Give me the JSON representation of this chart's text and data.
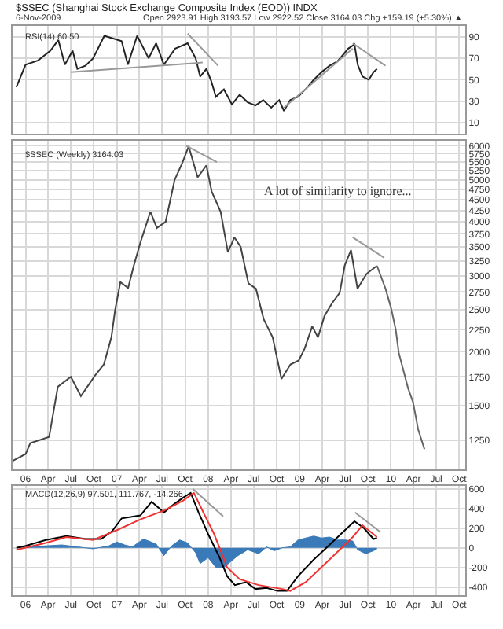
{
  "chart_data": [
    {
      "type": "line",
      "title": "$SSEC (Shanghai Stock Exchange Composite Index (EOD)) INDX",
      "subtitle": "6-Nov-2009",
      "annotations": [
        "Open 2923.91 High 3193.57 Low 2922.52 Close 3164.03 Chg +159.19 (+5.30%) ▲",
        "RSI(14) 60.50"
      ],
      "xlim": [
        "2005-11-10",
        "2010-10-25"
      ],
      "ylim": [
        0,
        100
      ],
      "yticks": [
        10,
        30,
        50,
        70,
        90
      ],
      "xticks": [
        {
          "value": "2006-01-01",
          "label": null
        },
        {
          "value": "2006-04-01",
          "label": null
        },
        {
          "value": "2006-07-01",
          "label": null
        },
        {
          "value": "2006-10-01",
          "label": null
        },
        {
          "value": "2007-01-01",
          "label": null
        },
        {
          "value": "2007-04-01",
          "label": null
        },
        {
          "value": "2007-07-01",
          "label": null
        },
        {
          "value": "2007-10-01",
          "label": null
        },
        {
          "value": "2008-01-01",
          "label": null
        },
        {
          "value": "2008-04-01",
          "label": null
        },
        {
          "value": "2008-07-01",
          "label": null
        },
        {
          "value": "2008-10-01",
          "label": null
        },
        {
          "value": "2009-01-01",
          "label": null
        },
        {
          "value": "2009-04-01",
          "label": null
        },
        {
          "value": "2009-07-01",
          "label": null
        },
        {
          "value": "2009-10-01",
          "label": null
        },
        {
          "value": "2010-01-01",
          "label": null
        },
        {
          "value": "2010-04-01",
          "label": null
        },
        {
          "value": "2010-07-01",
          "label": null
        },
        {
          "value": "2010-10-01",
          "label": null
        }
      ],
      "tick_labels": "y",
      "grid": true,
      "series": [
        {
          "color": "#222222",
          "x": [
            "2005-11-25",
            "2006-01-01",
            "2006-02-20",
            "2006-04-10",
            "2006-05-12",
            "2006-06-07",
            "2006-07-08",
            "2006-07-27",
            "2006-08-28",
            "2006-09-28",
            "2006-11-12",
            "2007-01-20",
            "2007-02-14",
            "2007-03-23",
            "2007-05-08",
            "2007-06-07",
            "2007-07-08",
            "2007-08-22",
            "2007-10-11",
            "2007-11-12",
            "2007-11-30",
            "2007-12-25",
            "2008-01-13",
            "2008-02-01",
            "2008-03-04",
            "2008-04-05",
            "2008-05-06",
            "2008-06-07",
            "2008-07-08",
            "2008-08-08",
            "2008-09-09",
            "2008-10-11",
            "2008-10-30",
            "2008-11-24",
            "2008-12-25",
            "2009-02-01",
            "2009-02-26",
            "2009-03-29",
            "2009-04-30",
            "2009-06-01",
            "2009-07-14",
            "2009-08-08",
            "2009-08-21",
            "2009-09-09",
            "2009-10-04",
            "2009-10-23",
            "2009-11-06"
          ],
          "values": [
            43,
            64,
            68,
            77,
            87,
            64,
            77,
            60,
            63,
            70,
            91,
            86,
            64,
            91,
            70,
            84,
            64,
            79,
            84,
            70,
            53,
            60,
            49,
            34,
            41,
            27,
            36,
            29,
            26,
            31,
            24,
            31,
            21,
            31,
            34,
            43,
            50,
            57,
            63,
            67,
            79,
            83,
            64,
            53,
            50,
            57,
            60
          ]
        },
        {
          "color": "#999999",
          "x": [
            "2006-07-01",
            "2007-12-10"
          ],
          "values": [
            57,
            66
          ]
        },
        {
          "color": "#999999",
          "x": [
            "2007-10-11",
            "2008-02-10"
          ],
          "values": [
            93,
            63
          ]
        },
        {
          "color": "#999999",
          "x": [
            "2008-10-30",
            "2009-08-01"
          ],
          "values": [
            24,
            79
          ]
        },
        {
          "color": "#999999",
          "x": [
            "2009-08-01",
            "2009-12-10"
          ],
          "values": [
            84,
            63
          ]
        }
      ]
    },
    {
      "type": "line",
      "annotations": [
        "$SSEC (Weekly) 3164.03",
        "A lot of similarity to ignore..."
      ],
      "xlim": [
        "2005-11-10",
        "2010-10-25"
      ],
      "ylim": [
        1070,
        6150
      ],
      "log": "y",
      "yticks": [
        1250,
        1500,
        1750,
        2000,
        2250,
        2500,
        2750,
        3000,
        3250,
        3500,
        3750,
        4000,
        4250,
        4500,
        4750,
        5000,
        5250,
        5500,
        5750,
        6000
      ],
      "xticks": [
        {
          "value": "2006-01-01",
          "label": "06"
        },
        {
          "value": "2006-04-01",
          "label": "Apr"
        },
        {
          "value": "2006-07-01",
          "label": "Jul"
        },
        {
          "value": "2006-10-01",
          "label": "Oct"
        },
        {
          "value": "2007-01-01",
          "label": "07"
        },
        {
          "value": "2007-04-01",
          "label": "Apr"
        },
        {
          "value": "2007-07-01",
          "label": "Jul"
        },
        {
          "value": "2007-10-01",
          "label": "Oct"
        },
        {
          "value": "2008-01-01",
          "label": "08"
        },
        {
          "value": "2008-04-01",
          "label": "Apr"
        },
        {
          "value": "2008-07-01",
          "label": "Jul"
        },
        {
          "value": "2008-10-01",
          "label": "Oct"
        },
        {
          "value": "2009-01-01",
          "label": "09"
        },
        {
          "value": "2009-04-01",
          "label": "Apr"
        },
        {
          "value": "2009-07-01",
          "label": "Jul"
        },
        {
          "value": "2009-10-01",
          "label": "Oct"
        },
        {
          "value": "2010-01-01",
          "label": "10"
        },
        {
          "value": "2010-04-01",
          "label": "Apr"
        },
        {
          "value": "2010-07-01",
          "label": "Jul"
        },
        {
          "value": "2010-10-01",
          "label": "Oct"
        }
      ],
      "grid": true,
      "series": [
        {
          "color": "#444444",
          "x": [
            "2005-11-12",
            "2006-01-01",
            "2006-01-20",
            "2006-04-05",
            "2006-05-10",
            "2006-07-01",
            "2006-08-10",
            "2006-10-05",
            "2006-11-10",
            "2006-12-10",
            "2006-12-25",
            "2007-01-15",
            "2007-02-15",
            "2007-03-10",
            "2007-04-05",
            "2007-05-15",
            "2007-06-10",
            "2007-07-15",
            "2007-08-20",
            "2007-09-20",
            "2007-10-15",
            "2007-11-20",
            "2007-12-25",
            "2008-01-15",
            "2008-02-20",
            "2008-03-20",
            "2008-04-15",
            "2008-05-10",
            "2008-06-10",
            "2008-07-10",
            "2008-08-10",
            "2008-09-15",
            "2008-10-20",
            "2008-11-25",
            "2008-12-28",
            "2009-01-20",
            "2009-02-20",
            "2009-03-15",
            "2009-04-10",
            "2009-05-10",
            "2009-06-10",
            "2009-06-30",
            "2009-07-25",
            "2009-08-20",
            "2009-09-25",
            "2009-11-06"
          ],
          "values": [
            1120,
            1160,
            1230,
            1270,
            1660,
            1750,
            1580,
            1760,
            1870,
            2160,
            2500,
            2900,
            2810,
            3170,
            3580,
            4220,
            3870,
            4000,
            5000,
            5480,
            5980,
            5070,
            5400,
            4700,
            4220,
            3400,
            3680,
            3500,
            2880,
            2800,
            2380,
            2160,
            1730,
            1870,
            1910,
            2030,
            2290,
            2160,
            2420,
            2590,
            2740,
            3170,
            3440,
            2800,
            3030,
            3164
          ]
        },
        {
          "color": "#666666",
          "x": [
            "2009-11-06",
            "2009-12-10",
            "2010-01-01",
            "2010-01-20",
            "2010-02-01",
            "2010-03-10",
            "2010-03-30",
            "2010-04-20",
            "2010-05-15"
          ],
          "values": [
            3164,
            2800,
            2530,
            2250,
            1990,
            1650,
            1530,
            1320,
            1190
          ]
        },
        {
          "color": "#999999",
          "x": [
            "2007-10-05",
            "2008-02-05"
          ],
          "values": [
            6000,
            5500
          ]
        },
        {
          "color": "#999999",
          "x": [
            "2009-08-01",
            "2009-12-05"
          ],
          "values": [
            3680,
            3300
          ]
        }
      ]
    },
    {
      "type": "line",
      "annotations": [
        "MACD(12,26,9) 97.501, 111.767, -14.266"
      ],
      "xlim": [
        "2005-11-10",
        "2010-10-25"
      ],
      "ylim": [
        -480,
        630
      ],
      "yticks": [
        -400,
        -200,
        0,
        200,
        400,
        600
      ],
      "xticks": [
        {
          "value": "2006-01-01",
          "label": "06"
        },
        {
          "value": "2006-04-01",
          "label": "Apr"
        },
        {
          "value": "2006-07-01",
          "label": "Jul"
        },
        {
          "value": "2006-10-01",
          "label": "Oct"
        },
        {
          "value": "2007-01-01",
          "label": "07"
        },
        {
          "value": "2007-04-01",
          "label": "Apr"
        },
        {
          "value": "2007-07-01",
          "label": "Jul"
        },
        {
          "value": "2007-10-01",
          "label": "Oct"
        },
        {
          "value": "2008-01-01",
          "label": "08"
        },
        {
          "value": "2008-04-01",
          "label": "Apr"
        },
        {
          "value": "2008-07-01",
          "label": "Jul"
        },
        {
          "value": "2008-10-01",
          "label": "Oct"
        },
        {
          "value": "2009-01-01",
          "label": "09"
        },
        {
          "value": "2009-04-01",
          "label": "Apr"
        },
        {
          "value": "2009-07-01",
          "label": "Jul"
        },
        {
          "value": "2009-10-01",
          "label": "Oct"
        },
        {
          "value": "2010-01-01",
          "label": "10"
        },
        {
          "value": "2010-04-01",
          "label": "Apr"
        },
        {
          "value": "2010-07-01",
          "label": "Jul"
        },
        {
          "value": "2010-10-01",
          "label": "Oct"
        }
      ],
      "grid": true,
      "series": [
        {
          "type": "area",
          "color": "#3a7ab8",
          "x": [
            "2005-11-25",
            "2006-01-01",
            "2006-03-23",
            "2006-05-25",
            "2006-07-27",
            "2006-09-28",
            "2006-11-30",
            "2007-01-01",
            "2007-02-01",
            "2007-03-04",
            "2007-04-17",
            "2007-06-07",
            "2007-07-08",
            "2007-08-08",
            "2007-09-09",
            "2007-10-11",
            "2007-11-12",
            "2007-11-30",
            "2008-01-01",
            "2008-02-01",
            "2008-03-04",
            "2008-04-05",
            "2008-04-29",
            "2008-06-07",
            "2008-07-21",
            "2008-08-22",
            "2008-09-21",
            "2008-10-23",
            "2008-11-24",
            "2008-12-25",
            "2009-01-25",
            "2009-02-26",
            "2009-03-29",
            "2009-04-30",
            "2009-06-01",
            "2009-07-01",
            "2009-08-01",
            "2009-08-21",
            "2009-09-22",
            "2009-10-23",
            "2009-11-06"
          ],
          "values": [
            0,
            10,
            20,
            30,
            10,
            -10,
            20,
            60,
            30,
            10,
            90,
            40,
            -80,
            20,
            80,
            50,
            -50,
            -160,
            -100,
            -200,
            -200,
            -130,
            -80,
            -20,
            -60,
            10,
            -30,
            0,
            10,
            80,
            100,
            120,
            100,
            110,
            80,
            80,
            70,
            -20,
            -60,
            -30,
            -10
          ]
        },
        {
          "color": "#000000",
          "x": [
            "2005-11-25",
            "2006-01-01",
            "2006-03-23",
            "2006-06-13",
            "2006-08-28",
            "2006-10-30",
            "2006-12-13",
            "2007-01-20",
            "2007-04-05",
            "2007-05-20",
            "2007-07-08",
            "2007-08-15",
            "2007-09-22",
            "2007-10-23",
            "2007-11-24",
            "2008-01-01",
            "2008-02-14",
            "2008-03-17",
            "2008-04-17",
            "2008-06-01",
            "2008-07-08",
            "2008-08-22",
            "2008-10-04",
            "2008-11-11",
            "2008-12-25",
            "2009-02-26",
            "2009-04-30",
            "2009-07-01",
            "2009-08-08",
            "2009-09-15",
            "2009-10-23",
            "2009-11-06"
          ],
          "values": [
            0,
            20,
            80,
            120,
            90,
            90,
            170,
            300,
            330,
            470,
            360,
            440,
            510,
            560,
            360,
            140,
            -90,
            -290,
            -380,
            -350,
            -420,
            -410,
            -440,
            -440,
            -290,
            -120,
            30,
            180,
            270,
            200,
            90,
            100
          ]
        },
        {
          "color": "#ee3333",
          "x": [
            "2005-11-25",
            "2006-03-23",
            "2006-06-13",
            "2006-09-28",
            "2007-01-01",
            "2007-04-05",
            "2007-07-08",
            "2007-09-22",
            "2007-11-05",
            "2007-12-13",
            "2008-01-25",
            "2008-03-17",
            "2008-05-06",
            "2008-07-21",
            "2008-10-23",
            "2008-11-24",
            "2009-01-25",
            "2009-04-30",
            "2009-08-01",
            "2009-09-09",
            "2009-11-06"
          ],
          "values": [
            -20,
            50,
            110,
            80,
            180,
            290,
            380,
            480,
            560,
            360,
            140,
            -200,
            -320,
            -380,
            -420,
            -440,
            -350,
            -120,
            110,
            230,
            110
          ]
        },
        {
          "color": "#999999",
          "x": [
            "2007-11-01",
            "2008-03-01"
          ],
          "values": [
            600,
            320
          ]
        },
        {
          "color": "#999999",
          "x": [
            "2009-08-10",
            "2009-11-20"
          ],
          "values": [
            360,
            160
          ]
        }
      ]
    }
  ]
}
